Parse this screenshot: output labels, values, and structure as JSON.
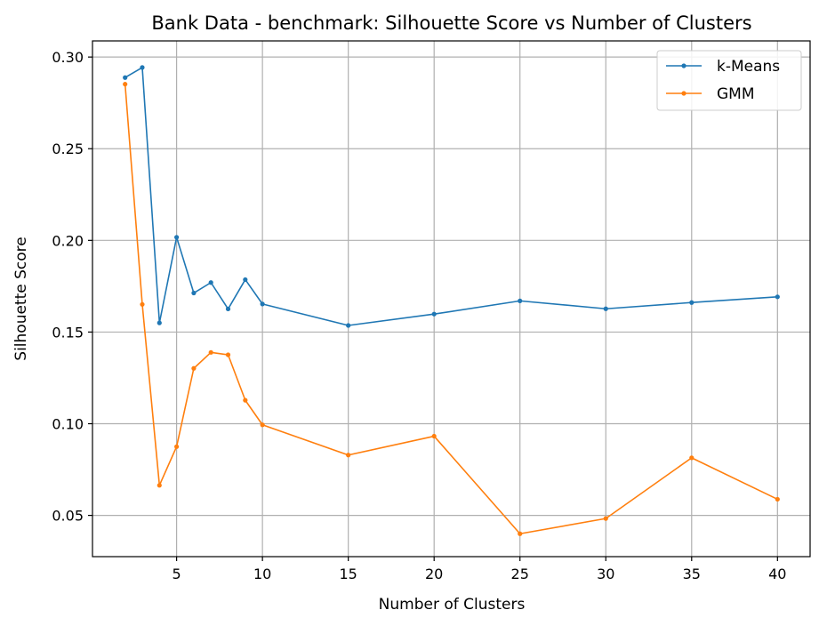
{
  "chart_data": {
    "type": "line",
    "title": "Bank Data - benchmark: Silhouette Score vs Number of Clusters",
    "xlabel": "Number of Clusters",
    "ylabel": "Silhouette Score",
    "x": [
      2,
      3,
      4,
      5,
      6,
      7,
      8,
      9,
      10,
      15,
      20,
      25,
      30,
      35,
      40
    ],
    "xticks": [
      5,
      10,
      15,
      20,
      25,
      30,
      35,
      40
    ],
    "yticks": [
      0.05,
      0.1,
      0.15,
      0.2,
      0.25,
      0.3
    ],
    "ytick_labels": [
      "0.05",
      "0.10",
      "0.15",
      "0.20",
      "0.25",
      "0.30"
    ],
    "xlim": [
      0.1,
      41.9
    ],
    "ylim": [
      0.0275,
      0.3088
    ],
    "grid": true,
    "legend_position": "top-right",
    "series": [
      {
        "name": "k-Means",
        "color": "#1f77b4",
        "values": [
          0.2888,
          0.2943,
          0.155,
          0.2017,
          0.1713,
          0.177,
          0.1626,
          0.1786,
          0.1653,
          0.1536,
          0.1598,
          0.167,
          0.1627,
          0.1661,
          0.1692
        ]
      },
      {
        "name": "GMM",
        "color": "#ff7f0e",
        "values": [
          0.2852,
          0.1651,
          0.0664,
          0.0875,
          0.1302,
          0.1389,
          0.1376,
          0.1128,
          0.0994,
          0.0829,
          0.0932,
          0.04,
          0.0483,
          0.0814,
          0.0588
        ]
      }
    ]
  }
}
